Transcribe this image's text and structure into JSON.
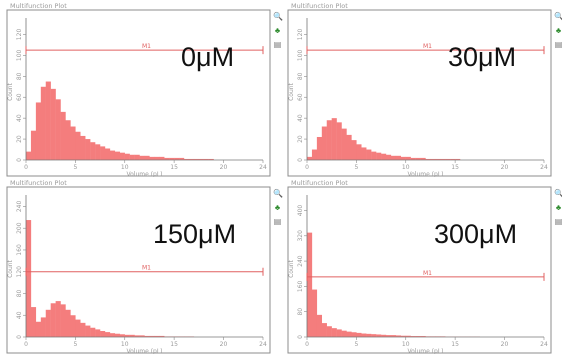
{
  "panels": [
    {
      "window_title": "Multifunction Plot",
      "concentration_label": "0μM",
      "xlabel": "Volume (pL)",
      "ylabel": "Count",
      "gate_label": "M1",
      "x_ticks": [
        "0",
        "5",
        "10",
        "15",
        "20",
        "24"
      ],
      "y_ticks": [
        "0",
        "20",
        "40",
        "60",
        "80",
        "100",
        "120"
      ],
      "tools": [
        "zoom-icon",
        "color-palette-icon",
        "copy-icon"
      ]
    },
    {
      "window_title": "Multifunction Plot",
      "concentration_label": "30μM",
      "xlabel": "Volume (pL)",
      "ylabel": "Count",
      "gate_label": "M1",
      "x_ticks": [
        "0",
        "5",
        "10",
        "15",
        "20",
        "24"
      ],
      "y_ticks": [
        "0",
        "20",
        "40",
        "60",
        "80",
        "100",
        "120"
      ],
      "tools": [
        "zoom-icon",
        "color-palette-icon",
        "copy-icon"
      ]
    },
    {
      "window_title": "Multifunction Plot",
      "concentration_label": "150μM",
      "xlabel": "Volume (pL)",
      "ylabel": "Count",
      "gate_label": "M1",
      "x_ticks": [
        "0",
        "5",
        "10",
        "15",
        "20",
        "24"
      ],
      "y_ticks": [
        "0",
        "40",
        "80",
        "120",
        "160",
        "200",
        "240"
      ],
      "tools": [
        "zoom-icon",
        "color-palette-icon",
        "copy-icon"
      ]
    },
    {
      "window_title": "Multifunction Plot",
      "concentration_label": "300μM",
      "xlabel": "Volume (pL)",
      "ylabel": "Count",
      "gate_label": "M1",
      "x_ticks": [
        "0",
        "5",
        "10",
        "15",
        "20",
        "24"
      ],
      "y_ticks": [
        "0",
        "80",
        "160",
        "240",
        "320",
        "400"
      ],
      "tools": [
        "zoom-icon",
        "color-palette-icon",
        "copy-icon"
      ]
    }
  ],
  "chart_data": [
    {
      "type": "bar",
      "title": "0μM",
      "xlabel": "Volume (pL)",
      "ylabel": "Count",
      "xlim": [
        0,
        24
      ],
      "ylim": [
        0,
        130
      ],
      "color": "#f47d7d",
      "gate": {
        "name": "M1",
        "x_range": [
          0,
          24
        ],
        "y": 105
      },
      "x": [
        0.0,
        0.5,
        1.0,
        1.5,
        2.0,
        2.5,
        3.0,
        3.5,
        4.0,
        4.5,
        5.0,
        5.5,
        6.0,
        6.5,
        7.0,
        7.5,
        8.0,
        8.5,
        9.0,
        9.5,
        10.0,
        10.5,
        11.0,
        11.5,
        12.0,
        12.5,
        13.0,
        13.5,
        14.0,
        14.5,
        15.0,
        15.5,
        16.0,
        16.5,
        17.0,
        17.5,
        18.0,
        18.5,
        19.0,
        19.5,
        20.0,
        20.5,
        21.0,
        21.5,
        22.0,
        22.5,
        23.0,
        23.5
      ],
      "values": [
        8,
        28,
        55,
        70,
        75,
        68,
        58,
        46,
        38,
        32,
        27,
        23,
        20,
        17,
        15,
        13,
        11,
        9,
        8,
        7,
        6,
        5,
        5,
        4,
        4,
        3,
        3,
        3,
        2,
        2,
        2,
        2,
        1,
        1,
        1,
        1,
        1,
        1,
        0,
        0,
        0,
        0,
        0,
        0,
        0,
        0,
        0,
        0
      ]
    },
    {
      "type": "bar",
      "title": "30μM",
      "xlabel": "Volume (pL)",
      "ylabel": "Count",
      "xlim": [
        0,
        24
      ],
      "ylim": [
        0,
        130
      ],
      "color": "#f47d7d",
      "gate": {
        "name": "M1",
        "x_range": [
          0,
          24
        ],
        "y": 105
      },
      "x": [
        0.0,
        0.5,
        1.0,
        1.5,
        2.0,
        2.5,
        3.0,
        3.5,
        4.0,
        4.5,
        5.0,
        5.5,
        6.0,
        6.5,
        7.0,
        7.5,
        8.0,
        8.5,
        9.0,
        9.5,
        10.0,
        10.5,
        11.0,
        11.5,
        12.0,
        12.5,
        13.0,
        13.5,
        14.0,
        14.5,
        15.0,
        15.5,
        16.0,
        16.5,
        17.0,
        17.5,
        18.0,
        18.5,
        19.0,
        19.5,
        20.0,
        20.5,
        21.0,
        21.5,
        22.0,
        22.5,
        23.0,
        23.5
      ],
      "values": [
        3,
        10,
        22,
        32,
        38,
        40,
        36,
        30,
        24,
        19,
        15,
        12,
        10,
        8,
        7,
        6,
        5,
        4,
        4,
        3,
        3,
        2,
        2,
        2,
        1,
        1,
        1,
        1,
        1,
        1,
        1,
        0,
        0,
        0,
        0,
        0,
        0,
        0,
        0,
        0,
        0,
        0,
        0,
        0,
        0,
        0,
        0,
        0
      ]
    },
    {
      "type": "bar",
      "title": "150μM",
      "xlabel": "Volume (pL)",
      "ylabel": "Count",
      "xlim": [
        0,
        24
      ],
      "ylim": [
        0,
        250
      ],
      "color": "#f47d7d",
      "gate": {
        "name": "M1",
        "x_range": [
          0,
          24
        ],
        "y": 120
      },
      "x": [
        0.0,
        0.5,
        1.0,
        1.5,
        2.0,
        2.5,
        3.0,
        3.5,
        4.0,
        4.5,
        5.0,
        5.5,
        6.0,
        6.5,
        7.0,
        7.5,
        8.0,
        8.5,
        9.0,
        9.5,
        10.0,
        10.5,
        11.0,
        11.5,
        12.0,
        12.5,
        13.0,
        13.5,
        14.0,
        14.5,
        15.0,
        15.5,
        16.0,
        16.5,
        17.0,
        17.5,
        18.0,
        18.5,
        19.0,
        19.5,
        20.0,
        20.5,
        21.0,
        21.5,
        22.0,
        22.5,
        23.0,
        23.5
      ],
      "values": [
        215,
        55,
        28,
        36,
        50,
        62,
        66,
        60,
        50,
        40,
        32,
        26,
        21,
        17,
        14,
        11,
        9,
        7,
        6,
        5,
        4,
        4,
        3,
        3,
        2,
        2,
        2,
        2,
        1,
        1,
        1,
        1,
        1,
        1,
        0,
        0,
        0,
        0,
        0,
        0,
        0,
        0,
        0,
        0,
        0,
        0,
        0,
        0
      ]
    },
    {
      "type": "bar",
      "title": "300μM",
      "xlabel": "Volume (pL)",
      "ylabel": "Count",
      "xlim": [
        0,
        24
      ],
      "ylim": [
        0,
        430
      ],
      "color": "#f47d7d",
      "gate": {
        "name": "M1",
        "x_range": [
          0,
          24
        ],
        "y": 190
      },
      "x": [
        0.0,
        0.5,
        1.0,
        1.5,
        2.0,
        2.5,
        3.0,
        3.5,
        4.0,
        4.5,
        5.0,
        5.5,
        6.0,
        6.5,
        7.0,
        7.5,
        8.0,
        8.5,
        9.0,
        9.5,
        10.0,
        10.5,
        11.0,
        11.5,
        12.0,
        12.5,
        13.0,
        13.5,
        14.0,
        14.5,
        15.0,
        15.5,
        16.0,
        16.5,
        17.0,
        17.5,
        18.0,
        18.5,
        19.0,
        19.5,
        20.0,
        20.5,
        21.0,
        21.5,
        22.0,
        22.5,
        23.0,
        23.5
      ],
      "values": [
        330,
        150,
        70,
        44,
        34,
        28,
        24,
        20,
        17,
        15,
        13,
        11,
        10,
        9,
        8,
        7,
        6,
        6,
        5,
        4,
        4,
        3,
        3,
        3,
        2,
        2,
        2,
        2,
        1,
        1,
        1,
        1,
        1,
        1,
        1,
        0,
        0,
        0,
        0,
        0,
        0,
        0,
        0,
        0,
        0,
        0,
        0,
        0
      ]
    }
  ]
}
